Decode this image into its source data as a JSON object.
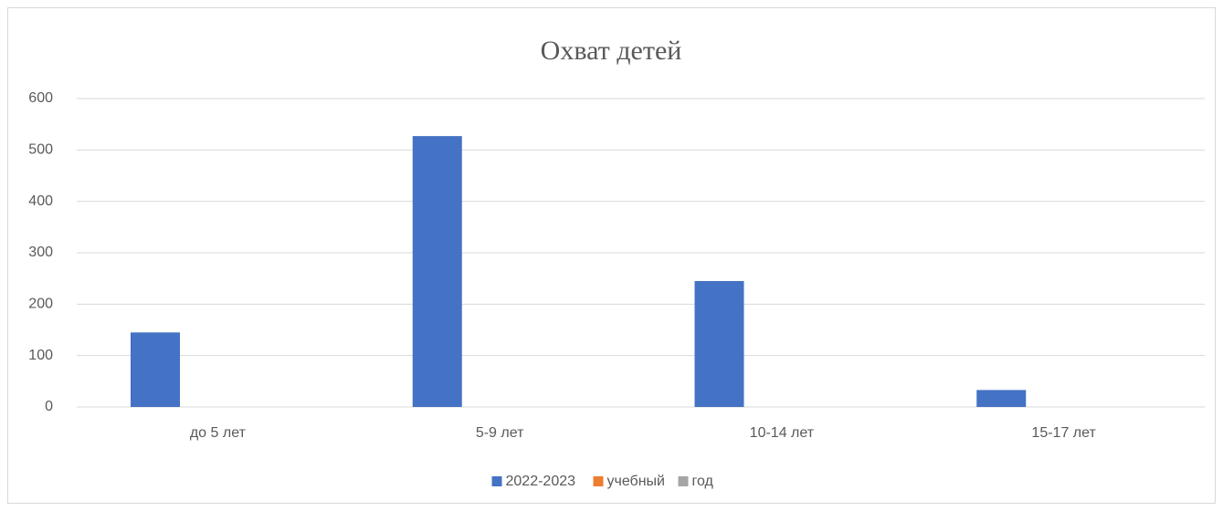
{
  "chart_data": {
    "type": "bar",
    "title": "Охват детей",
    "categories": [
      "до 5 лет",
      "5-9 лет",
      "10-14 лет",
      "15-17 лет"
    ],
    "series": [
      {
        "name": "2022-2023",
        "color": "#4472c4",
        "values": [
          145,
          527,
          245,
          33
        ]
      },
      {
        "name": "учебный",
        "color": "#ed7d31",
        "values": [
          null,
          null,
          null,
          null
        ]
      },
      {
        "name": "год",
        "color": "#a5a5a5",
        "values": [
          null,
          null,
          null,
          null
        ]
      }
    ],
    "ylim": [
      0,
      600
    ],
    "yticks": [
      0,
      100,
      200,
      300,
      400,
      500,
      600
    ],
    "grid": true,
    "legend": "bottom"
  }
}
